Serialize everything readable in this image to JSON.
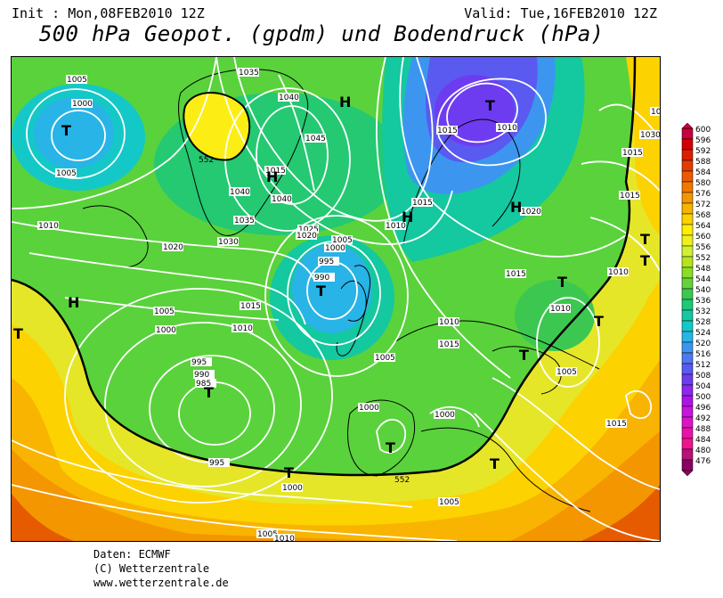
{
  "header": {
    "init": "Init : Mon,08FEB2010 12Z",
    "valid": "Valid: Tue,16FEB2010 12Z",
    "title": "500 hPa Geopot. (gpdm) und Bodendruck (hPa)"
  },
  "colorbar": {
    "levels": [
      "600",
      "596",
      "592",
      "588",
      "584",
      "580",
      "576",
      "572",
      "568",
      "564",
      "560",
      "556",
      "552",
      "548",
      "544",
      "540",
      "536",
      "532",
      "528",
      "524",
      "520",
      "516",
      "512",
      "508",
      "504",
      "500",
      "496",
      "492",
      "488",
      "484",
      "480",
      "476"
    ],
    "colors": [
      "#c8003c",
      "#d20000",
      "#dc1e00",
      "#e63c00",
      "#ec5a00",
      "#f07800",
      "#f49600",
      "#f8b400",
      "#fcd200",
      "#fff000",
      "#f0f01e",
      "#d2f032",
      "#b4e61e",
      "#8cdc28",
      "#64d23c",
      "#3cc850",
      "#1ec878",
      "#14c8a0",
      "#14c8c8",
      "#28b4e6",
      "#3c96f0",
      "#5078f0",
      "#5a5af0",
      "#6e3cf0",
      "#8c28f0",
      "#aa14e6",
      "#c814dc",
      "#dc14c8",
      "#e614aa",
      "#f0148c",
      "#b41478",
      "#8c0064"
    ]
  },
  "map": {
    "contour_552_label": "552",
    "pressure_labels": [
      "1005",
      "1000",
      "1005",
      "1010",
      "1035",
      "1040",
      "1045",
      "1015",
      "1040",
      "1040",
      "1035",
      "1030",
      "1020",
      "1025",
      "1020",
      "1005",
      "1000",
      "995",
      "990",
      "1015",
      "1010",
      "1010",
      "1015",
      "1015",
      "1010",
      "1020",
      "1015",
      "1010",
      "1015",
      "1010",
      "1005",
      "1005",
      "1000",
      "995",
      "990",
      "985",
      "1005",
      "1000",
      "1000",
      "995",
      "1000",
      "1005",
      "1010",
      "1005",
      "1015",
      "1035",
      "1030",
      "1015",
      "1015",
      "1010"
    ],
    "highs": [
      "H",
      "H",
      "H",
      "H",
      "H"
    ],
    "lows": [
      "T",
      "T",
      "T",
      "T",
      "T",
      "T",
      "T",
      "T",
      "T",
      "T",
      "T",
      "T",
      "T"
    ]
  },
  "credits": {
    "line1": "Daten: ECMWF",
    "line2": "(C) Wetterzentrale",
    "line3": "www.wetterzentrale.de"
  }
}
